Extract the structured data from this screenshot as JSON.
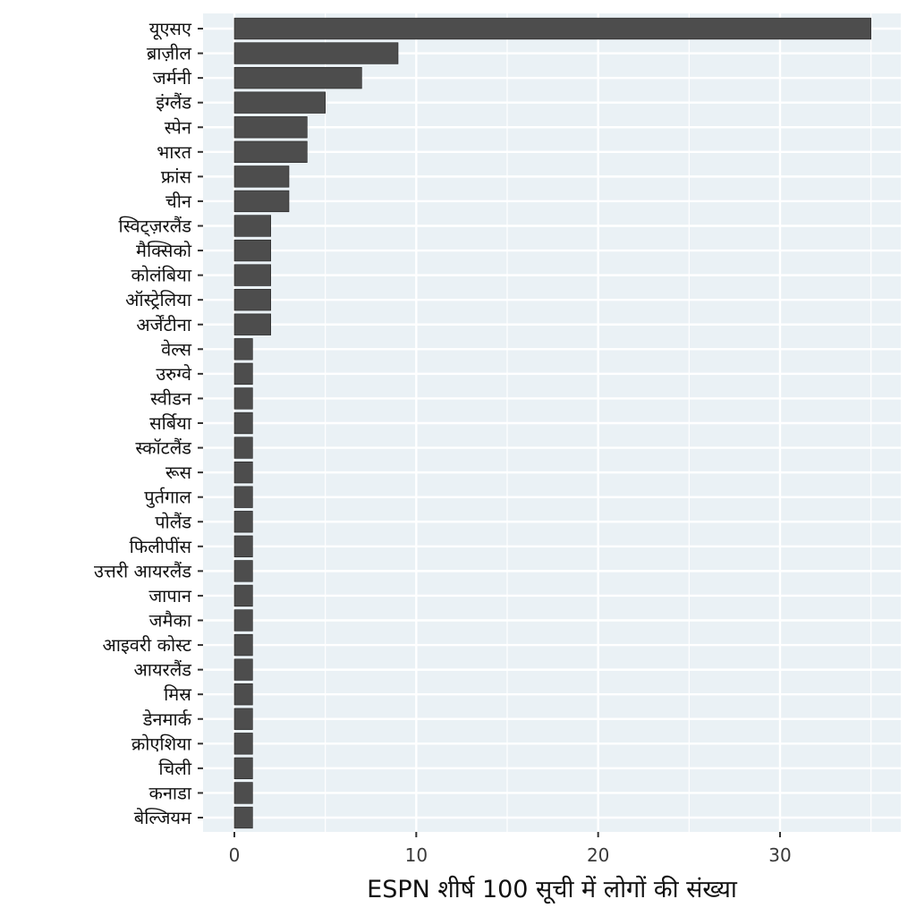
{
  "chart_data": {
    "type": "bar",
    "orientation": "horizontal",
    "title": "",
    "xlabel": "ESPN शीर्ष 100 सूची में लोगों की संख्या",
    "ylabel": "",
    "xlim": [
      0,
      36
    ],
    "x_ticks": [
      0,
      10,
      20,
      30
    ],
    "grid": true,
    "legend": "none",
    "colors": {
      "bar": "#4d4d4d",
      "panel": "#eaf1f5",
      "grid": "#ffffff"
    },
    "categories": [
      "यूएसए",
      "ब्राज़ील",
      "जर्मनी",
      "इंग्लैंड",
      "स्पेन",
      "भारत",
      "फ्रांस",
      "चीन",
      "स्विट्ज़रलैंड",
      "मैक्सिको",
      "कोलंबिया",
      "ऑस्ट्रेलिया",
      "अर्जेंटीना",
      "वेल्स",
      "उरुग्वे",
      "स्वीडन",
      "सर्बिया",
      "स्कॉटलैंड",
      "रूस",
      "पुर्तगाल",
      "पोलैंड",
      "फिलीपींस",
      "उत्तरी आयरलैंड",
      "जापान",
      "जमैका",
      "आइवरी कोस्ट",
      "आयरलैंड",
      "मिस्र",
      "डेनमार्क",
      "क्रोएशिया",
      "चिली",
      "कनाडा",
      "बेल्जियम"
    ],
    "values": [
      35,
      9,
      7,
      5,
      4,
      4,
      3,
      3,
      2,
      2,
      2,
      2,
      2,
      1,
      1,
      1,
      1,
      1,
      1,
      1,
      1,
      1,
      1,
      1,
      1,
      1,
      1,
      1,
      1,
      1,
      1,
      1,
      1
    ]
  }
}
